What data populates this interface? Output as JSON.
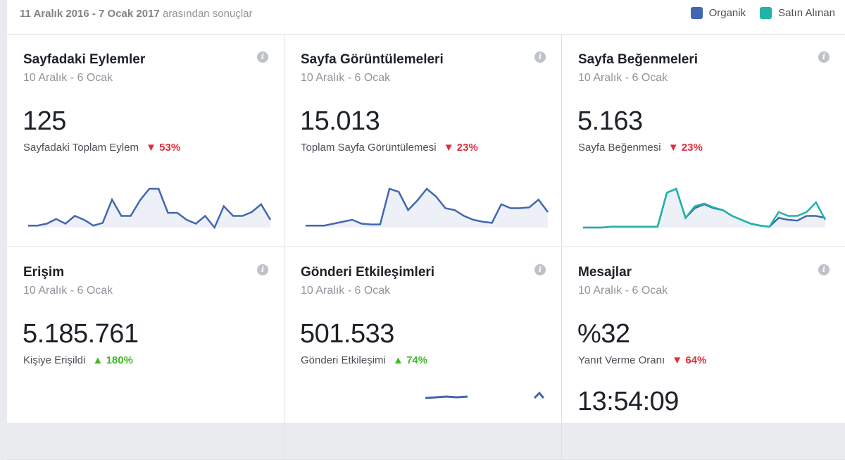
{
  "header": {
    "date_range": "11 Aralık 2016 - 7 Ocak 2017",
    "date_range_suffix": "arasından sonuçlar",
    "legend": [
      {
        "label": "Organik",
        "color": "#4267b2"
      },
      {
        "label": "Satın Alınan",
        "color": "#1fb5a6"
      }
    ]
  },
  "cards": [
    {
      "title": "Sayfadaki Eylemler",
      "range": "10 Aralık - 6 Ocak",
      "value": "125",
      "subtitle": "Sayfadaki Toplam Eylem",
      "delta": "53%",
      "direction": "down",
      "organic": [
        0.05,
        0.05,
        0.1,
        0.22,
        0.1,
        0.3,
        0.2,
        0.05,
        0.12,
        0.72,
        0.3,
        0.3,
        0.7,
        1.0,
        1.0,
        0.38,
        0.38,
        0.2,
        0.1,
        0.3,
        0.0,
        0.55,
        0.3,
        0.3,
        0.4,
        0.6,
        0.2
      ]
    },
    {
      "title": "Sayfa Görüntülemeleri",
      "range": "10 Aralık - 6 Ocak",
      "value": "15.013",
      "subtitle": "Toplam Sayfa Görüntülemesi",
      "delta": "23%",
      "direction": "down",
      "organic": [
        0.05,
        0.05,
        0.05,
        0.1,
        0.15,
        0.2,
        0.1,
        0.08,
        0.08,
        1.0,
        0.92,
        0.45,
        0.7,
        1.0,
        0.8,
        0.5,
        0.45,
        0.3,
        0.2,
        0.15,
        0.12,
        0.6,
        0.5,
        0.5,
        0.52,
        0.72,
        0.4
      ]
    },
    {
      "title": "Sayfa Beğenmeleri",
      "range": "10 Aralık - 6 Ocak",
      "value": "5.163",
      "subtitle": "Sayfa Beğenmesi",
      "delta": "23%",
      "direction": "down",
      "organic": [
        0.0,
        0.0,
        0.0,
        0.02,
        0.02,
        0.02,
        0.02,
        0.02,
        0.02,
        0.9,
        1.0,
        0.25,
        0.5,
        0.6,
        0.5,
        0.45,
        0.3,
        0.2,
        0.1,
        0.05,
        0.02,
        0.25,
        0.2,
        0.18,
        0.3,
        0.3,
        0.25
      ],
      "paid": [
        0.0,
        0.0,
        0.0,
        0.02,
        0.02,
        0.02,
        0.02,
        0.02,
        0.02,
        0.9,
        1.0,
        0.25,
        0.55,
        0.62,
        0.52,
        0.45,
        0.3,
        0.2,
        0.1,
        0.05,
        0.02,
        0.4,
        0.3,
        0.3,
        0.4,
        0.65,
        0.2
      ]
    },
    {
      "title": "Erişim",
      "range": "10 Aralık - 6 Ocak",
      "value": "5.185.761",
      "subtitle": "Kişiye Erişildi",
      "delta": "180%",
      "direction": "up"
    },
    {
      "title": "Gönderi Etkileşimleri",
      "range": "10 Aralık - 6 Ocak",
      "value": "501.533",
      "subtitle": "Gönderi Etkileşimi",
      "delta": "74%",
      "direction": "up"
    },
    {
      "title": "Mesajlar",
      "range": "10 Aralık - 6 Ocak",
      "value": "%32",
      "subtitle": "Yanıt Verme Oranı",
      "delta": "64%",
      "direction": "down",
      "extra_value": "13:54:09"
    }
  ]
}
